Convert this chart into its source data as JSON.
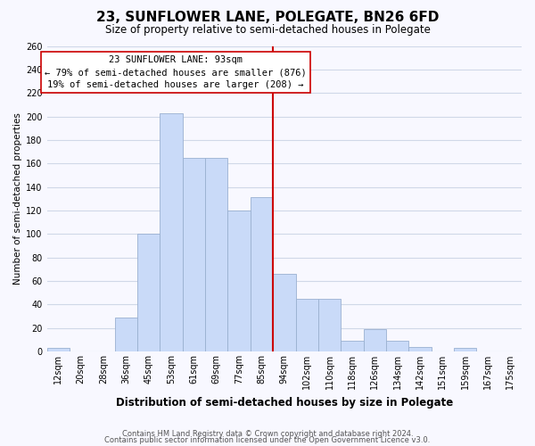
{
  "title": "23, SUNFLOWER LANE, POLEGATE, BN26 6FD",
  "subtitle": "Size of property relative to semi-detached houses in Polegate",
  "xlabel": "Distribution of semi-detached houses by size in Polegate",
  "ylabel": "Number of semi-detached properties",
  "footnote1": "Contains HM Land Registry data © Crown copyright and database right 2024.",
  "footnote2": "Contains public sector information licensed under the Open Government Licence v3.0.",
  "bin_labels": [
    "12sqm",
    "20sqm",
    "28sqm",
    "36sqm",
    "45sqm",
    "53sqm",
    "61sqm",
    "69sqm",
    "77sqm",
    "85sqm",
    "94sqm",
    "102sqm",
    "110sqm",
    "118sqm",
    "126sqm",
    "134sqm",
    "142sqm",
    "151sqm",
    "159sqm",
    "167sqm",
    "175sqm"
  ],
  "bar_heights": [
    3,
    0,
    0,
    29,
    100,
    203,
    165,
    165,
    120,
    131,
    66,
    45,
    45,
    9,
    19,
    9,
    4,
    0,
    3,
    0,
    0
  ],
  "bar_color": "#c9daf8",
  "bar_edge_color": "#9ab0d0",
  "annotation_line_x_label": "94sqm",
  "annotation_line_color": "#cc0000",
  "annotation_line_index": 10,
  "annotation_box_line1": "23 SUNFLOWER LANE: 93sqm",
  "annotation_box_line2": "← 79% of semi-detached houses are smaller (876)",
  "annotation_box_line3": "19% of semi-detached houses are larger (208) →",
  "annotation_box_edge_color": "#cc0000",
  "annotation_box_fill_color": "#ffffff",
  "ylim": [
    0,
    260
  ],
  "yticks": [
    0,
    20,
    40,
    60,
    80,
    100,
    120,
    140,
    160,
    180,
    200,
    220,
    240,
    260
  ],
  "grid_color": "#d0d8e8",
  "background_color": "#f8f8ff",
  "title_fontsize": 11,
  "subtitle_fontsize": 8.5,
  "xlabel_fontsize": 8.5,
  "ylabel_fontsize": 7.5,
  "tick_fontsize": 7,
  "annot_fontsize": 7.5,
  "footnote_fontsize": 6
}
